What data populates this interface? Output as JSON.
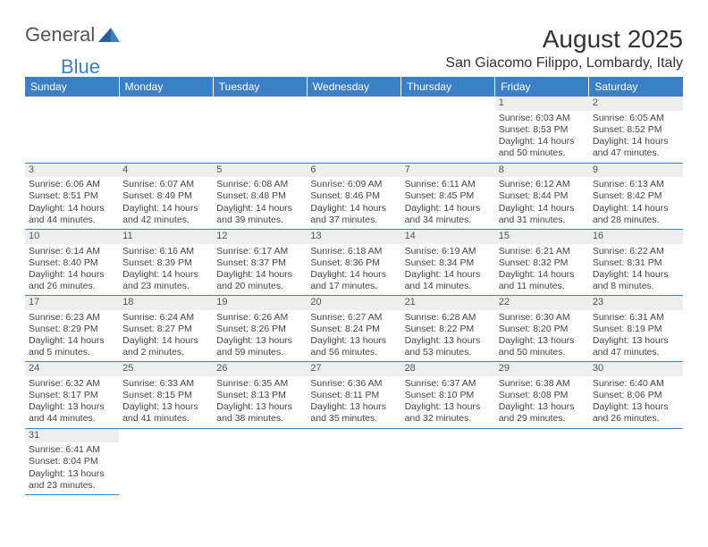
{
  "logo": {
    "word1": "General",
    "word2": "Blue"
  },
  "title": "August 2025",
  "subtitle": "San Giacomo Filippo, Lombardy, Italy",
  "colors": {
    "header_bg": "#3b7fc4",
    "header_text": "#ffffff",
    "daynum_bg": "#eeeeee",
    "cell_border": "#3b7fc4",
    "body_text": "#444444"
  },
  "weekdays": [
    "Sunday",
    "Monday",
    "Tuesday",
    "Wednesday",
    "Thursday",
    "Friday",
    "Saturday"
  ],
  "first_weekday_index": 5,
  "days": [
    {
      "n": 1,
      "sunrise": "6:03 AM",
      "sunset": "8:53 PM",
      "daylight": "14 hours and 50 minutes."
    },
    {
      "n": 2,
      "sunrise": "6:05 AM",
      "sunset": "8:52 PM",
      "daylight": "14 hours and 47 minutes."
    },
    {
      "n": 3,
      "sunrise": "6:06 AM",
      "sunset": "8:51 PM",
      "daylight": "14 hours and 44 minutes."
    },
    {
      "n": 4,
      "sunrise": "6:07 AM",
      "sunset": "8:49 PM",
      "daylight": "14 hours and 42 minutes."
    },
    {
      "n": 5,
      "sunrise": "6:08 AM",
      "sunset": "8:48 PM",
      "daylight": "14 hours and 39 minutes."
    },
    {
      "n": 6,
      "sunrise": "6:09 AM",
      "sunset": "8:46 PM",
      "daylight": "14 hours and 37 minutes."
    },
    {
      "n": 7,
      "sunrise": "6:11 AM",
      "sunset": "8:45 PM",
      "daylight": "14 hours and 34 minutes."
    },
    {
      "n": 8,
      "sunrise": "6:12 AM",
      "sunset": "8:44 PM",
      "daylight": "14 hours and 31 minutes."
    },
    {
      "n": 9,
      "sunrise": "6:13 AM",
      "sunset": "8:42 PM",
      "daylight": "14 hours and 28 minutes."
    },
    {
      "n": 10,
      "sunrise": "6:14 AM",
      "sunset": "8:40 PM",
      "daylight": "14 hours and 26 minutes."
    },
    {
      "n": 11,
      "sunrise": "6:16 AM",
      "sunset": "8:39 PM",
      "daylight": "14 hours and 23 minutes."
    },
    {
      "n": 12,
      "sunrise": "6:17 AM",
      "sunset": "8:37 PM",
      "daylight": "14 hours and 20 minutes."
    },
    {
      "n": 13,
      "sunrise": "6:18 AM",
      "sunset": "8:36 PM",
      "daylight": "14 hours and 17 minutes."
    },
    {
      "n": 14,
      "sunrise": "6:19 AM",
      "sunset": "8:34 PM",
      "daylight": "14 hours and 14 minutes."
    },
    {
      "n": 15,
      "sunrise": "6:21 AM",
      "sunset": "8:32 PM",
      "daylight": "14 hours and 11 minutes."
    },
    {
      "n": 16,
      "sunrise": "6:22 AM",
      "sunset": "8:31 PM",
      "daylight": "14 hours and 8 minutes."
    },
    {
      "n": 17,
      "sunrise": "6:23 AM",
      "sunset": "8:29 PM",
      "daylight": "14 hours and 5 minutes."
    },
    {
      "n": 18,
      "sunrise": "6:24 AM",
      "sunset": "8:27 PM",
      "daylight": "14 hours and 2 minutes."
    },
    {
      "n": 19,
      "sunrise": "6:26 AM",
      "sunset": "8:26 PM",
      "daylight": "13 hours and 59 minutes."
    },
    {
      "n": 20,
      "sunrise": "6:27 AM",
      "sunset": "8:24 PM",
      "daylight": "13 hours and 56 minutes."
    },
    {
      "n": 21,
      "sunrise": "6:28 AM",
      "sunset": "8:22 PM",
      "daylight": "13 hours and 53 minutes."
    },
    {
      "n": 22,
      "sunrise": "6:30 AM",
      "sunset": "8:20 PM",
      "daylight": "13 hours and 50 minutes."
    },
    {
      "n": 23,
      "sunrise": "6:31 AM",
      "sunset": "8:19 PM",
      "daylight": "13 hours and 47 minutes."
    },
    {
      "n": 24,
      "sunrise": "6:32 AM",
      "sunset": "8:17 PM",
      "daylight": "13 hours and 44 minutes."
    },
    {
      "n": 25,
      "sunrise": "6:33 AM",
      "sunset": "8:15 PM",
      "daylight": "13 hours and 41 minutes."
    },
    {
      "n": 26,
      "sunrise": "6:35 AM",
      "sunset": "8:13 PM",
      "daylight": "13 hours and 38 minutes."
    },
    {
      "n": 27,
      "sunrise": "6:36 AM",
      "sunset": "8:11 PM",
      "daylight": "13 hours and 35 minutes."
    },
    {
      "n": 28,
      "sunrise": "6:37 AM",
      "sunset": "8:10 PM",
      "daylight": "13 hours and 32 minutes."
    },
    {
      "n": 29,
      "sunrise": "6:38 AM",
      "sunset": "8:08 PM",
      "daylight": "13 hours and 29 minutes."
    },
    {
      "n": 30,
      "sunrise": "6:40 AM",
      "sunset": "8:06 PM",
      "daylight": "13 hours and 26 minutes."
    },
    {
      "n": 31,
      "sunrise": "6:41 AM",
      "sunset": "8:04 PM",
      "daylight": "13 hours and 23 minutes."
    }
  ],
  "labels": {
    "sunrise": "Sunrise: ",
    "sunset": "Sunset: ",
    "daylight": "Daylight: "
  }
}
